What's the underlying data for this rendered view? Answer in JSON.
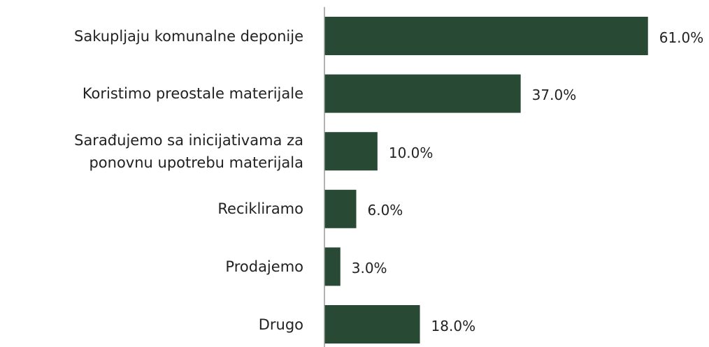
{
  "chart_data": {
    "type": "hbar",
    "categories": [
      "Sakupljaju komunalne deponije",
      "Koristimo preostale materijale",
      "Sarađujemo sa inicijativama za\nponovnu upotrebu materijala",
      "Recikliramo",
      "Prodajemo",
      "Drugo"
    ],
    "values": [
      61,
      37,
      10,
      6,
      3,
      18
    ],
    "value_labels": [
      "61.0%",
      "37.0%",
      "10.0%",
      "6.0%",
      "3.0%",
      "18.0%"
    ],
    "color": "#284a35",
    "xlim": [
      0,
      70
    ]
  }
}
